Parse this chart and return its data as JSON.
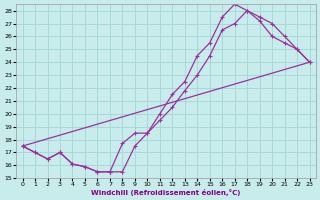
{
  "xlabel": "Windchill (Refroidissement éolien,°C)",
  "bg_color": "#c8ecec",
  "grid_color": "#a8d8d8",
  "line_color": "#993399",
  "xlim": [
    -0.5,
    23.5
  ],
  "ylim": [
    15,
    28.5
  ],
  "xticks": [
    0,
    1,
    2,
    3,
    4,
    5,
    6,
    7,
    8,
    9,
    10,
    11,
    12,
    13,
    14,
    15,
    16,
    17,
    18,
    19,
    20,
    21,
    22,
    23
  ],
  "yticks": [
    15,
    16,
    17,
    18,
    19,
    20,
    21,
    22,
    23,
    24,
    25,
    26,
    27,
    28
  ],
  "line1_x": [
    0,
    1,
    2,
    3,
    4,
    5,
    6,
    7,
    8,
    9,
    10,
    11,
    12,
    13,
    14,
    15,
    16,
    17,
    18,
    19,
    20,
    21,
    22,
    23
  ],
  "line1_y": [
    17.5,
    17.0,
    16.5,
    17.0,
    16.1,
    15.9,
    15.5,
    15.5,
    15.5,
    17.5,
    18.5,
    19.5,
    20.5,
    21.8,
    23.0,
    24.5,
    26.5,
    27.0,
    28.0,
    27.2,
    26.0,
    25.5,
    25.0,
    24.0
  ],
  "line2_x": [
    0,
    1,
    2,
    3,
    4,
    5,
    6,
    7,
    8,
    9,
    10,
    11,
    12,
    13,
    14,
    15,
    16,
    17,
    18,
    19,
    20,
    21,
    22,
    23
  ],
  "line2_y": [
    17.5,
    17.0,
    16.5,
    17.0,
    16.1,
    15.9,
    15.5,
    15.5,
    17.7,
    18.5,
    18.5,
    20.0,
    21.5,
    22.5,
    24.5,
    25.5,
    27.5,
    28.5,
    28.0,
    27.5,
    27.0,
    26.0,
    25.0,
    24.0
  ],
  "line3_x": [
    0,
    23
  ],
  "line3_y": [
    17.5,
    24.0
  ]
}
